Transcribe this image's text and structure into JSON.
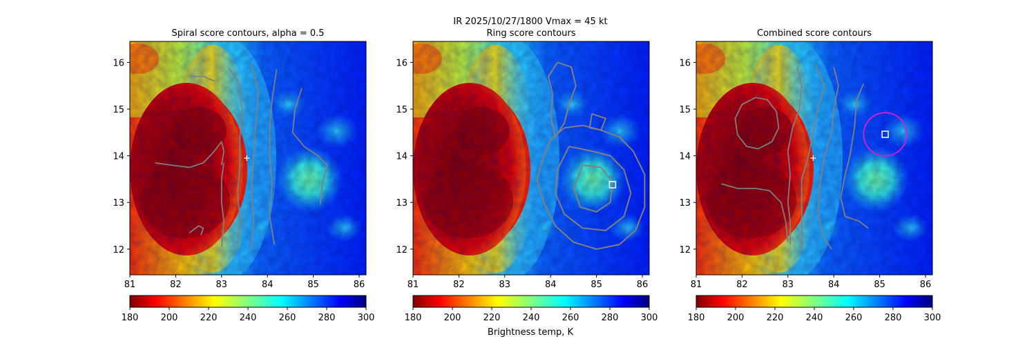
{
  "figure": {
    "suptitle_line1": "IR  2025/10/27/1800    Vmax = 45 kt",
    "colorbar_label": "Brightness temp, K"
  },
  "colors": {
    "contour": "#808080",
    "center_marker": "#ffffff",
    "ring": "#cc22cc",
    "box": "#ffffff"
  },
  "chart_data": [
    {
      "type": "heatmap",
      "title": "Spiral score contours, alpha =  0.5",
      "xlim": [
        81,
        86.15
      ],
      "ylim": [
        11.45,
        16.45
      ],
      "xticks": [
        "81",
        "82",
        "83",
        "84",
        "85",
        "86"
      ],
      "yticks": [
        "12",
        "13",
        "14",
        "15",
        "16"
      ],
      "colorbar": {
        "min": 180,
        "max": 300,
        "ticks": [
          "180",
          "200",
          "220",
          "240",
          "260",
          "280",
          "300"
        ],
        "colormap": "jet"
      },
      "markers": [
        {
          "kind": "plus",
          "lon": 83.55,
          "lat": 13.95
        }
      ],
      "contours": [
        [
          [
            81.55,
            13.85
          ],
          [
            81.9,
            13.8
          ],
          [
            82.3,
            13.75
          ],
          [
            82.6,
            13.85
          ],
          [
            82.8,
            14.05
          ],
          [
            83.0,
            14.3
          ],
          [
            83.05,
            14.1
          ],
          [
            83.0,
            13.8
          ]
        ],
        [
          [
            83.0,
            12.05
          ],
          [
            83.05,
            12.6
          ],
          [
            83.0,
            13.0
          ],
          [
            83.0,
            13.5
          ],
          [
            83.05,
            13.85
          ]
        ],
        [
          [
            82.3,
            15.7
          ],
          [
            82.6,
            15.7
          ],
          [
            82.85,
            15.6
          ]
        ],
        [
          [
            82.3,
            12.35
          ],
          [
            82.5,
            12.5
          ],
          [
            82.6,
            12.45
          ],
          [
            82.55,
            12.3
          ]
        ],
        [
          [
            83.15,
            15.9
          ],
          [
            83.35,
            15.6
          ],
          [
            83.45,
            15.0
          ],
          [
            83.4,
            14.4
          ],
          [
            83.4,
            13.8
          ],
          [
            83.35,
            13.2
          ],
          [
            83.4,
            12.6
          ],
          [
            83.35,
            12.0
          ]
        ],
        [
          [
            83.65,
            15.95
          ],
          [
            83.8,
            15.4
          ],
          [
            83.75,
            14.7
          ],
          [
            83.7,
            14.0
          ],
          [
            83.65,
            13.2
          ],
          [
            83.7,
            12.6
          ],
          [
            83.65,
            12.0
          ]
        ],
        [
          [
            84.2,
            15.85
          ],
          [
            84.1,
            15.2
          ],
          [
            84.05,
            14.6
          ],
          [
            84.05,
            14.0
          ],
          [
            84.1,
            13.4
          ],
          [
            84.05,
            12.7
          ],
          [
            84.15,
            12.1
          ]
        ],
        [
          [
            84.75,
            15.45
          ],
          [
            84.6,
            15.0
          ],
          [
            84.55,
            14.5
          ],
          [
            84.8,
            14.2
          ],
          [
            85.1,
            14.0
          ],
          [
            85.3,
            13.8
          ],
          [
            85.2,
            13.4
          ],
          [
            85.15,
            12.95
          ]
        ]
      ]
    },
    {
      "type": "heatmap",
      "title": "Ring score contours",
      "xlim": [
        81,
        86.15
      ],
      "ylim": [
        11.45,
        16.45
      ],
      "xticks": [
        "81",
        "82",
        "83",
        "84",
        "85",
        "86"
      ],
      "yticks": [
        "12",
        "13",
        "14",
        "15",
        "16"
      ],
      "colorbar": {
        "min": 180,
        "max": 300,
        "ticks": [
          "180",
          "200",
          "220",
          "240",
          "260",
          "280",
          "300"
        ],
        "colormap": "jet"
      },
      "markers": [
        {
          "kind": "square",
          "lon": 85.35,
          "lat": 13.38
        }
      ],
      "contours": [
        [
          [
            84.15,
            16.0
          ],
          [
            84.45,
            15.9
          ],
          [
            84.55,
            15.5
          ],
          [
            84.4,
            15.1
          ],
          [
            84.3,
            14.7
          ],
          [
            84.1,
            14.4
          ],
          [
            84.0,
            14.85
          ],
          [
            84.05,
            15.3
          ],
          [
            83.95,
            15.7
          ],
          [
            84.15,
            16.0
          ]
        ],
        [
          [
            84.3,
            14.6
          ],
          [
            84.7,
            14.65
          ],
          [
            85.1,
            14.55
          ],
          [
            85.5,
            14.4
          ],
          [
            85.8,
            14.1
          ],
          [
            86.05,
            13.6
          ],
          [
            86.05,
            12.9
          ],
          [
            85.85,
            12.4
          ],
          [
            85.5,
            12.1
          ],
          [
            85.0,
            12.0
          ],
          [
            84.5,
            12.15
          ],
          [
            84.1,
            12.5
          ],
          [
            83.85,
            13.0
          ],
          [
            83.7,
            13.5
          ],
          [
            83.85,
            14.0
          ],
          [
            84.0,
            14.35
          ],
          [
            84.3,
            14.6
          ]
        ],
        [
          [
            84.4,
            14.2
          ],
          [
            84.9,
            14.1
          ],
          [
            85.3,
            14.0
          ],
          [
            85.6,
            13.7
          ],
          [
            85.75,
            13.2
          ],
          [
            85.6,
            12.7
          ],
          [
            85.2,
            12.4
          ],
          [
            84.7,
            12.45
          ],
          [
            84.3,
            12.75
          ],
          [
            84.1,
            13.2
          ],
          [
            84.15,
            13.7
          ],
          [
            84.4,
            14.2
          ]
        ],
        [
          [
            84.7,
            13.8
          ],
          [
            85.1,
            13.75
          ],
          [
            85.35,
            13.45
          ],
          [
            85.3,
            13.0
          ],
          [
            85.0,
            12.8
          ],
          [
            84.65,
            12.9
          ],
          [
            84.5,
            13.3
          ],
          [
            84.7,
            13.8
          ]
        ],
        [
          [
            84.9,
            14.9
          ],
          [
            85.2,
            14.8
          ],
          [
            85.1,
            14.55
          ],
          [
            84.85,
            14.6
          ],
          [
            84.9,
            14.9
          ]
        ]
      ]
    },
    {
      "type": "heatmap",
      "title": "Combined score contours",
      "xlim": [
        81,
        86.15
      ],
      "ylim": [
        11.45,
        16.45
      ],
      "xticks": [
        "81",
        "82",
        "83",
        "84",
        "85",
        "86"
      ],
      "yticks": [
        "12",
        "13",
        "14",
        "15",
        "16"
      ],
      "colorbar": {
        "min": 180,
        "max": 300,
        "ticks": [
          "180",
          "200",
          "220",
          "240",
          "260",
          "280",
          "300"
        ],
        "colormap": "jet"
      },
      "markers": [
        {
          "kind": "plus",
          "lon": 83.55,
          "lat": 13.95
        },
        {
          "kind": "square",
          "lon": 85.12,
          "lat": 14.46
        },
        {
          "kind": "circle",
          "lon": 85.12,
          "lat": 14.46,
          "radius_deg": 0.47
        }
      ],
      "contours": [
        [
          [
            82.3,
            15.25
          ],
          [
            82.55,
            15.2
          ],
          [
            82.75,
            14.95
          ],
          [
            82.8,
            14.6
          ],
          [
            82.65,
            14.3
          ],
          [
            82.35,
            14.15
          ],
          [
            82.1,
            14.2
          ],
          [
            81.9,
            14.45
          ],
          [
            81.85,
            14.8
          ],
          [
            82.0,
            15.1
          ],
          [
            82.3,
            15.25
          ]
        ],
        [
          [
            81.55,
            13.4
          ],
          [
            81.9,
            13.3
          ],
          [
            82.3,
            13.3
          ],
          [
            82.6,
            13.25
          ],
          [
            82.85,
            13.0
          ],
          [
            82.95,
            12.6
          ],
          [
            83.0,
            12.15
          ]
        ],
        [
          [
            83.2,
            15.9
          ],
          [
            83.3,
            15.5
          ],
          [
            83.25,
            15.0
          ],
          [
            83.1,
            14.6
          ],
          [
            83.0,
            14.1
          ],
          [
            83.05,
            13.6
          ],
          [
            83.0,
            13.0
          ],
          [
            83.05,
            12.6
          ],
          [
            83.05,
            12.1
          ]
        ],
        [
          [
            83.6,
            15.95
          ],
          [
            83.8,
            15.5
          ],
          [
            83.65,
            15.0
          ],
          [
            83.55,
            14.5
          ],
          [
            83.45,
            14.0
          ],
          [
            83.3,
            13.5
          ],
          [
            83.3,
            13.0
          ],
          [
            83.3,
            12.5
          ],
          [
            83.3,
            12.0
          ]
        ],
        [
          [
            84.0,
            15.9
          ],
          [
            84.1,
            15.5
          ],
          [
            84.0,
            15.0
          ],
          [
            83.95,
            14.5
          ],
          [
            83.8,
            14.0
          ],
          [
            83.7,
            13.4
          ],
          [
            83.65,
            12.8
          ],
          [
            83.75,
            12.3
          ],
          [
            83.95,
            12.0
          ]
        ],
        [
          [
            84.65,
            15.55
          ],
          [
            84.5,
            15.2
          ],
          [
            84.45,
            14.6
          ],
          [
            84.35,
            14.0
          ],
          [
            84.25,
            13.6
          ],
          [
            84.15,
            13.1
          ],
          [
            84.25,
            12.7
          ],
          [
            84.55,
            12.6
          ],
          [
            84.75,
            12.45
          ]
        ]
      ]
    }
  ]
}
